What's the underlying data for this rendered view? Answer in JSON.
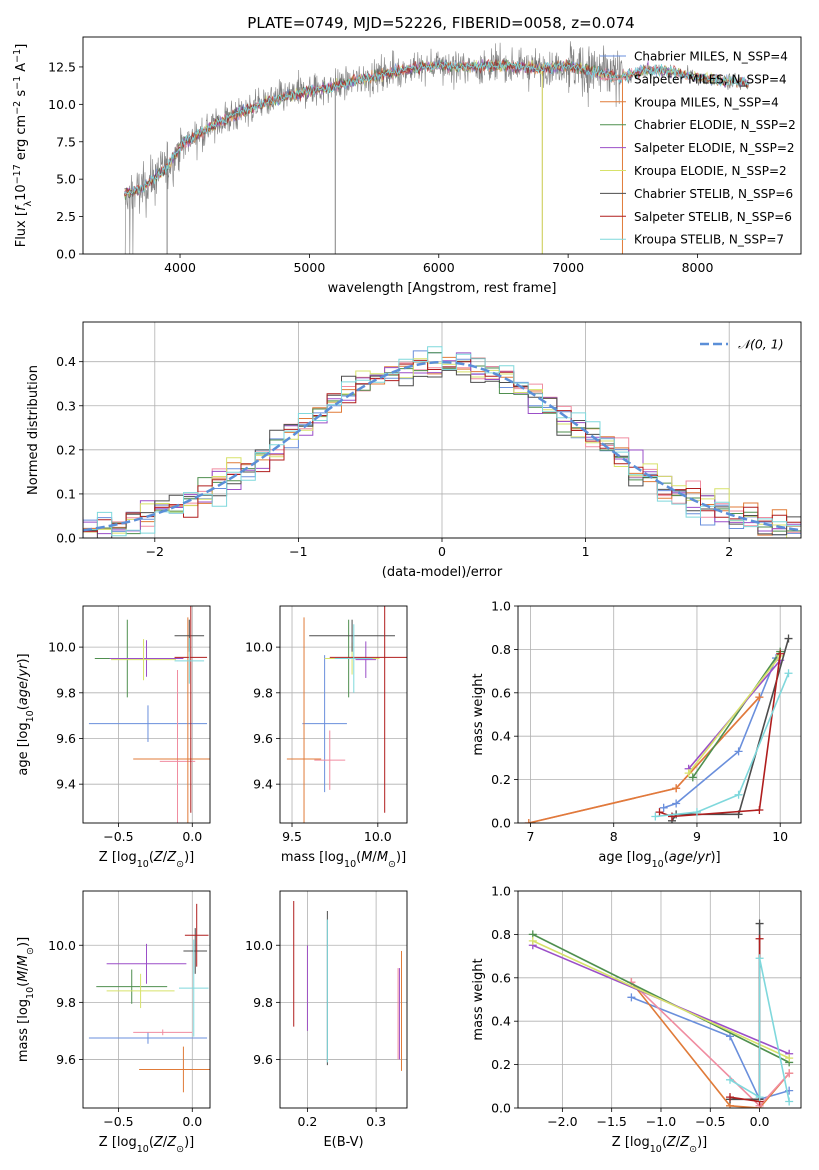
{
  "figure_title": "PLATE=0749, MJD=52226, FIBERID=0058, z=0.074",
  "colors": {
    "chabrier_miles": "#6a8fdc",
    "salpeter_miles": "#f08ca0",
    "kroupa_miles": "#e07b39",
    "chabrier_elodie": "#4f8f4f",
    "salpeter_elodie": "#9b4fc8",
    "kroupa_elodie": "#d7e26a",
    "chabrier_stelib": "#4d4d4d",
    "salpeter_stelib": "#b01e1e",
    "kroupa_stelib": "#7fd8dc",
    "data": "#808080",
    "normal": "#5b8fd8",
    "grid": "#b0b0b0"
  },
  "chart_data": [
    {
      "id": "spectrum",
      "type": "line",
      "title": "PLATE=0749, MJD=52226, FIBERID=0058, z=0.074",
      "xlabel": "wavelength [Angstrom, rest frame]",
      "ylabel": "Flux [fλ 10⁻¹⁷ erg cm⁻² s⁻¹ A⁻¹]",
      "xlim": [
        3250,
        8800
      ],
      "ylim": [
        0,
        14.5
      ],
      "xticks": [
        4000,
        5000,
        6000,
        7000,
        8000
      ],
      "yticks": [
        0.0,
        2.5,
        5.0,
        7.5,
        10.0,
        12.5
      ],
      "continuum_x": [
        3570,
        3700,
        3900,
        4000,
        4100,
        4300,
        4500,
        4700,
        5000,
        5200,
        5500,
        5800,
        6000,
        6200,
        6500,
        6800,
        7000,
        7200,
        7400,
        7600,
        7800,
        8000,
        8200,
        8400
      ],
      "continuum_y": [
        4.0,
        4.3,
        5.8,
        7.2,
        7.8,
        8.8,
        9.6,
        10.2,
        10.9,
        11.2,
        11.9,
        12.4,
        12.6,
        12.5,
        12.6,
        12.4,
        12.6,
        12.2,
        11.8,
        12.3,
        12.2,
        11.8,
        11.6,
        11.4
      ],
      "legend": [
        "Chabrier MILES, N_SSP=4",
        "Salpeter MILES, N_SSP=4",
        "Kroupa MILES, N_SSP=4",
        "Chabrier ELODIE, N_SSP=2",
        "Salpeter ELODIE, N_SSP=2",
        "Kroupa ELODIE, N_SSP=2",
        "Chabrier STELIB, N_SSP=6",
        "Salpeter STELIB, N_SSP=6",
        "Kroupa STELIB, N_SSP=7"
      ],
      "legend_placement": "right",
      "grid": false
    },
    {
      "id": "residuals",
      "type": "line",
      "xlabel": "(data-model)/error",
      "ylabel": "Normed distribution",
      "xlim": [
        -2.5,
        2.5
      ],
      "ylim": [
        0,
        0.49
      ],
      "xticks": [
        -2,
        -1,
        0,
        1,
        2
      ],
      "yticks": [
        0.0,
        0.1,
        0.2,
        0.3,
        0.4
      ],
      "legend": [
        "𝒩(0, 1)"
      ],
      "legend_placement": "top-right",
      "grid": true
    },
    {
      "id": "age_vs_Z",
      "type": "scatter",
      "xlabel": "Z [log10(Z/Z⊙)]",
      "ylabel": "age  [log10(age/yr)]",
      "xlim": [
        -0.74,
        0.12
      ],
      "ylim": [
        9.23,
        10.18
      ],
      "xticks": [
        -0.5,
        0.0
      ],
      "yticks": [
        9.4,
        9.6,
        9.8,
        10.0
      ],
      "grid": true,
      "points": [
        {
          "x": -0.3,
          "y": 9.665,
          "xerr": 0.4,
          "yerr": 0.08,
          "series": "chabrier_miles"
        },
        {
          "x": -0.1,
          "y": 9.5,
          "xerr": 0.12,
          "yerr": 0.4,
          "series": "salpeter_miles"
        },
        {
          "x": -0.03,
          "y": 9.51,
          "xerr": 0.37,
          "yerr": 0.62,
          "series": "kroupa_miles"
        },
        {
          "x": -0.44,
          "y": 9.95,
          "xerr": 0.22,
          "yerr": 0.17,
          "series": "chabrier_elodie"
        },
        {
          "x": -0.31,
          "y": 9.95,
          "xerr": 0.25,
          "yerr": 0.08,
          "series": "salpeter_elodie"
        },
        {
          "x": -0.33,
          "y": 9.945,
          "xerr": 0.22,
          "yerr": 0.09,
          "series": "kroupa_elodie"
        },
        {
          "x": -0.02,
          "y": 10.05,
          "xerr": 0.1,
          "yerr": 0.07,
          "series": "chabrier_stelib"
        },
        {
          "x": -0.01,
          "y": 9.955,
          "xerr": 0.11,
          "yerr": 0.68,
          "series": "salpeter_stelib"
        },
        {
          "x": -0.02,
          "y": 9.94,
          "xerr": 0.1,
          "yerr": 0.1,
          "series": "kroupa_stelib"
        }
      ]
    },
    {
      "id": "age_vs_mass",
      "type": "scatter",
      "xlabel": "mass [log10(M/M⊙)]",
      "ylabel": "",
      "xlim": [
        9.43,
        10.17
      ],
      "ylim": [
        9.23,
        10.18
      ],
      "xticks": [
        9.5,
        10.0
      ],
      "yticks": [
        9.4,
        9.6,
        9.8,
        10.0
      ],
      "grid": true,
      "points": [
        {
          "x": 9.69,
          "y": 9.665,
          "xerr": 0.13,
          "yerr": 0.3,
          "series": "chabrier_miles"
        },
        {
          "x": 9.72,
          "y": 9.505,
          "xerr": 0.09,
          "yerr": 0.13,
          "series": "salpeter_miles"
        },
        {
          "x": 9.57,
          "y": 9.51,
          "xerr": 0.1,
          "yerr": 0.62,
          "series": "kroupa_miles"
        },
        {
          "x": 9.83,
          "y": 9.95,
          "xerr": 0.06,
          "yerr": 0.17,
          "series": "chabrier_elodie"
        },
        {
          "x": 9.93,
          "y": 9.945,
          "xerr": 0.06,
          "yerr": 0.08,
          "series": "salpeter_elodie"
        },
        {
          "x": 9.85,
          "y": 9.95,
          "xerr": 0.16,
          "yerr": 0.07,
          "series": "kroupa_elodie"
        },
        {
          "x": 9.85,
          "y": 10.05,
          "xerr": 0.25,
          "yerr": 0.07,
          "series": "chabrier_stelib"
        },
        {
          "x": 10.04,
          "y": 9.955,
          "xerr": 0.32,
          "yerr": 0.68,
          "series": "salpeter_stelib"
        },
        {
          "x": 9.86,
          "y": 9.95,
          "xerr": 0.11,
          "yerr": 0.15,
          "series": "kroupa_stelib"
        }
      ]
    },
    {
      "id": "mass_weight_vs_age",
      "type": "line",
      "xlabel": "age  [log10(age/yr)]",
      "ylabel": "mass weight",
      "xlim": [
        6.85,
        10.25
      ],
      "ylim": [
        0,
        1.0
      ],
      "xticks": [
        7,
        8,
        9,
        10
      ],
      "yticks": [
        0.0,
        0.2,
        0.4,
        0.6,
        0.8,
        1.0
      ],
      "grid": true,
      "series": [
        {
          "id": "chabrier_miles",
          "x": [
            8.6,
            8.75,
            9.5,
            9.95
          ],
          "y": [
            0.07,
            0.09,
            0.33,
            0.76
          ]
        },
        {
          "id": "salpeter_miles",
          "x": [
            6.98,
            8.75,
            9.75
          ],
          "y": [
            0.0,
            0.16,
            0.58
          ]
        },
        {
          "id": "kroupa_miles",
          "x": [
            6.98,
            8.75,
            9.75
          ],
          "y": [
            0.0,
            0.16,
            0.58
          ]
        },
        {
          "id": "chabrier_elodie",
          "x": [
            8.95,
            10.0
          ],
          "y": [
            0.21,
            0.79
          ]
        },
        {
          "id": "salpeter_elodie",
          "x": [
            8.9,
            10.0
          ],
          "y": [
            0.25,
            0.75
          ]
        },
        {
          "id": "kroupa_elodie",
          "x": [
            8.9,
            10.0
          ],
          "y": [
            0.23,
            0.77
          ]
        },
        {
          "id": "chabrier_stelib",
          "x": [
            8.7,
            8.75,
            9.5,
            10.1
          ],
          "y": [
            0.01,
            0.04,
            0.04,
            0.85
          ]
        },
        {
          "id": "salpeter_stelib",
          "x": [
            8.55,
            8.7,
            9.75,
            10.0
          ],
          "y": [
            0.05,
            0.03,
            0.06,
            0.78
          ]
        },
        {
          "id": "kroupa_stelib",
          "x": [
            8.5,
            9.0,
            9.5,
            10.1
          ],
          "y": [
            0.03,
            0.05,
            0.13,
            0.69
          ]
        }
      ]
    },
    {
      "id": "mass_vs_Z",
      "type": "scatter",
      "xlabel": "Z [log10(Z/Z⊙)]",
      "ylabel": "mass [log10(M/M⊙)]",
      "xlim": [
        -0.74,
        0.12
      ],
      "ylim": [
        9.43,
        10.19
      ],
      "xticks": [
        -0.5,
        0.0
      ],
      "yticks": [
        9.6,
        9.8,
        10.0
      ],
      "grid": true,
      "points": [
        {
          "x": -0.3,
          "y": 9.675,
          "xerr": 0.4,
          "yerr": 0.02,
          "series": "chabrier_miles"
        },
        {
          "x": -0.2,
          "y": 9.695,
          "xerr": 0.2,
          "yerr": 0.01,
          "series": "salpeter_miles"
        },
        {
          "x": -0.06,
          "y": 9.565,
          "xerr": 0.3,
          "yerr": 0.08,
          "series": "kroupa_miles"
        },
        {
          "x": -0.41,
          "y": 9.855,
          "xerr": 0.24,
          "yerr": 0.06,
          "series": "chabrier_elodie"
        },
        {
          "x": -0.31,
          "y": 9.935,
          "xerr": 0.27,
          "yerr": 0.07,
          "series": "salpeter_elodie"
        },
        {
          "x": -0.35,
          "y": 9.84,
          "xerr": 0.23,
          "yerr": 0.06,
          "series": "kroupa_elodie"
        },
        {
          "x": 0.02,
          "y": 9.98,
          "xerr": 0.08,
          "yerr": 0.08,
          "series": "chabrier_stelib"
        },
        {
          "x": 0.03,
          "y": 10.035,
          "xerr": 0.08,
          "yerr": 0.11,
          "series": "salpeter_stelib"
        },
        {
          "x": 0.01,
          "y": 9.85,
          "xerr": 0.1,
          "yerr": 0.17,
          "series": "kroupa_stelib"
        }
      ]
    },
    {
      "id": "mass_vs_ebv",
      "type": "scatter",
      "xlabel": "E(B-V)",
      "ylabel": "",
      "xlim": [
        0.16,
        0.345
      ],
      "ylim": [
        9.43,
        10.19
      ],
      "xticks": [
        0.2,
        0.3
      ],
      "yticks": [
        9.6,
        9.8,
        10.0
      ],
      "grid": true,
      "points": [
        {
          "x": 0.337,
          "y": 9.77,
          "yerr": 0.21,
          "series": "kroupa_miles"
        },
        {
          "x": 0.334,
          "y": 9.76,
          "yerr": 0.16,
          "series": "salpeter_elodie"
        },
        {
          "x": 0.332,
          "y": 9.76,
          "yerr": 0.16,
          "series": "salpeter_miles"
        },
        {
          "x": 0.18,
          "y": 9.935,
          "yerr": 0.22,
          "series": "salpeter_stelib"
        },
        {
          "x": 0.2,
          "y": 9.85,
          "yerr": 0.15,
          "series": "kroupa_elodie"
        },
        {
          "x": 0.2,
          "y": 9.85,
          "yerr": 0.15,
          "series": "salpeter_elodie"
        },
        {
          "x": 0.229,
          "y": 9.85,
          "yerr": 0.27,
          "series": "chabrier_stelib"
        },
        {
          "x": 0.229,
          "y": 9.84,
          "yerr": 0.25,
          "series": "kroupa_stelib"
        }
      ]
    },
    {
      "id": "mass_weight_vs_Z",
      "type": "line",
      "xlabel": "Z [log10(Z/Z⊙)]",
      "ylabel": "mass weight",
      "xlim": [
        -2.45,
        0.42
      ],
      "ylim": [
        0,
        1.0
      ],
      "xticks": [
        -2.0,
        -1.5,
        -1.0,
        -0.5,
        0.0
      ],
      "yticks": [
        0.0,
        0.2,
        0.4,
        0.6,
        0.8,
        1.0
      ],
      "grid": true,
      "series": [
        {
          "id": "chabrier_miles",
          "x": [
            -1.3,
            -0.3,
            0.0,
            0.3
          ],
          "y": [
            0.51,
            0.33,
            0.04,
            0.08
          ]
        },
        {
          "id": "kroupa_miles",
          "x": [
            -1.3,
            -0.3,
            0.0,
            0.3
          ],
          "y": [
            0.58,
            0.01,
            0.0,
            0.16
          ]
        },
        {
          "id": "salpeter_miles",
          "x": [
            -1.3,
            0.0,
            0.3
          ],
          "y": [
            0.58,
            0.01,
            0.16
          ]
        },
        {
          "id": "chabrier_elodie",
          "x": [
            -2.3,
            0.3
          ],
          "y": [
            0.8,
            0.21
          ]
        },
        {
          "id": "salpeter_elodie",
          "x": [
            -2.3,
            0.3
          ],
          "y": [
            0.75,
            0.25
          ]
        },
        {
          "id": "kroupa_elodie",
          "x": [
            -2.3,
            0.3
          ],
          "y": [
            0.77,
            0.23
          ]
        },
        {
          "id": "chabrier_stelib",
          "x": [
            -0.3,
            0.0,
            0.0
          ],
          "y": [
            0.04,
            0.04,
            0.85
          ]
        },
        {
          "id": "salpeter_stelib",
          "x": [
            -0.3,
            0.0,
            0.0
          ],
          "y": [
            0.05,
            0.03,
            0.78
          ]
        },
        {
          "id": "kroupa_stelib",
          "x": [
            -0.3,
            0.0,
            0.0,
            0.3
          ],
          "y": [
            0.13,
            0.05,
            0.69,
            0.03
          ]
        }
      ]
    }
  ]
}
